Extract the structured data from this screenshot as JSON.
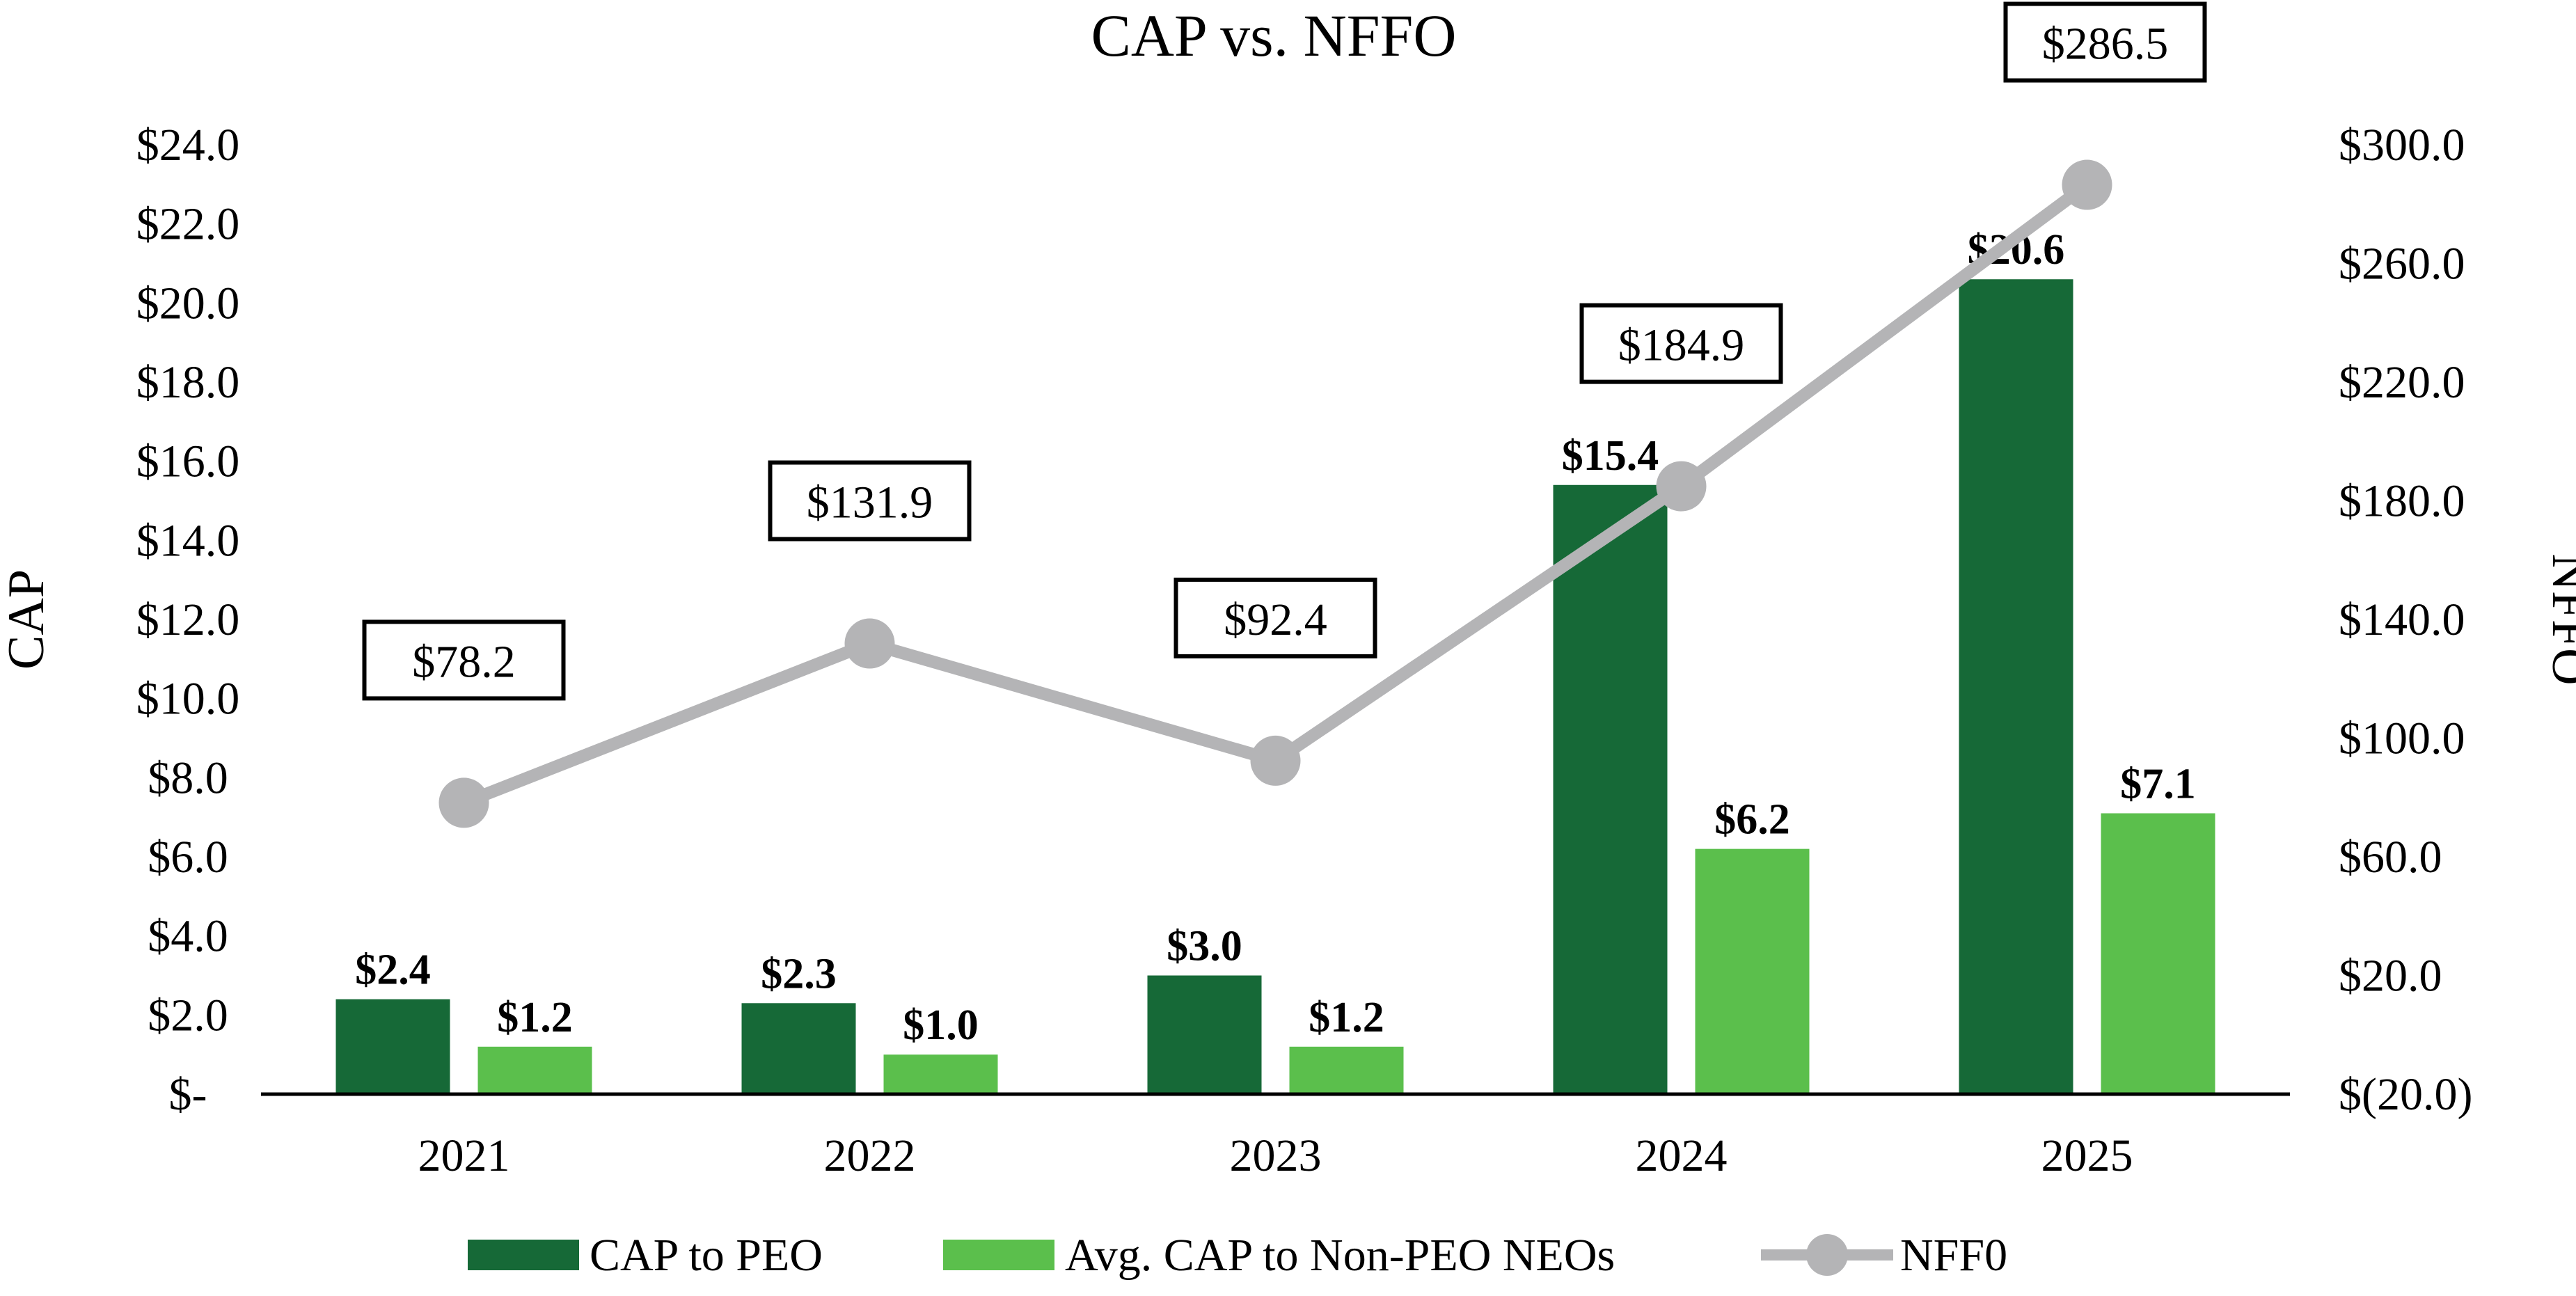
{
  "chart_data": {
    "type": "bar",
    "title": "CAP vs. NFFO",
    "categories": [
      "2021",
      "2022",
      "2023",
      "2024",
      "2025"
    ],
    "ylabel": "CAP",
    "y2label": "NFFO",
    "ylim": [
      0,
      24
    ],
    "y2lim": [
      -20,
      300
    ],
    "y_ticks": [
      "$-",
      "$2.0",
      "$4.0",
      "$6.0",
      "$8.0",
      "$10.0",
      "$12.0",
      "$14.0",
      "$16.0",
      "$18.0",
      "$20.0",
      "$22.0",
      "$24.0"
    ],
    "y2_ticks": [
      "$(20.0)",
      "$20.0",
      "$60.0",
      "$100.0",
      "$140.0",
      "$180.0",
      "$220.0",
      "$260.0",
      "$300.0"
    ],
    "series": [
      {
        "name": "CAP to PEO",
        "type": "bar",
        "axis": "left",
        "color": "#166937",
        "values": [
          2.4,
          2.3,
          3.0,
          15.4,
          20.6
        ],
        "labels": [
          "$2.4",
          "$2.3",
          "$3.0",
          "$15.4",
          "$20.6"
        ]
      },
      {
        "name": "Avg. CAP to Non-PEO NEOs",
        "type": "bar",
        "axis": "left",
        "color": "#5bbf4c",
        "values": [
          1.2,
          1.0,
          1.2,
          6.2,
          7.1
        ],
        "labels": [
          "$1.2",
          "$1.0",
          "$1.2",
          "$6.2",
          "$7.1"
        ]
      },
      {
        "name": "NFF0",
        "type": "line",
        "axis": "right",
        "color": "#b4b4b6",
        "values": [
          78.2,
          131.9,
          92.4,
          184.9,
          286.5
        ],
        "labels": [
          "$78.2",
          "$131.9",
          "$92.4",
          "$184.9",
          "$286.5"
        ]
      }
    ],
    "legend_position": "bottom",
    "grid": false
  }
}
